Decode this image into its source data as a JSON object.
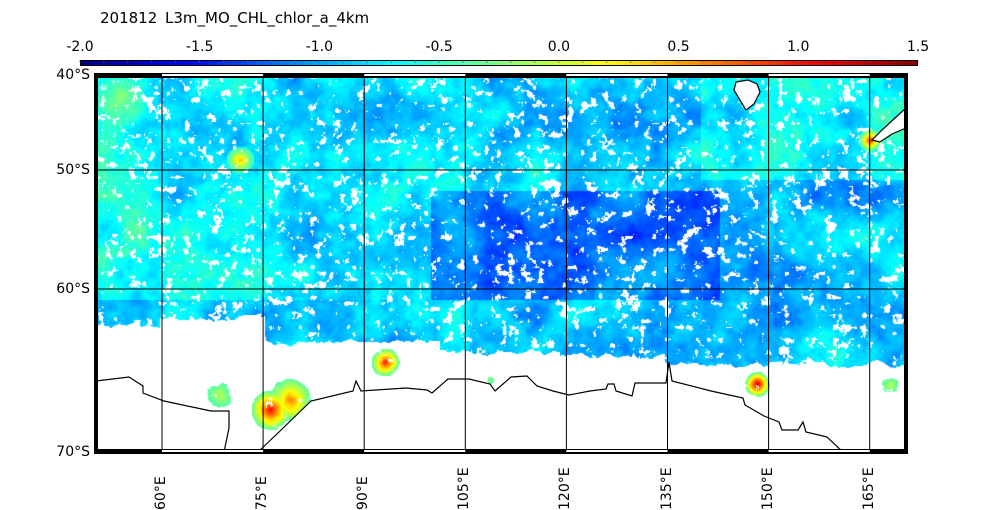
{
  "header": {
    "date": "201812",
    "product": "L3m_MO_CHL_chlor_a_4km"
  },
  "chart_data": {
    "type": "heatmap",
    "title": "201812    L3m_MO_CHL_chlor_a_4km",
    "colormap": "jet",
    "colorbar": {
      "range": [
        -2.0,
        1.5
      ],
      "ticks": [
        {
          "value": -2.0,
          "label": "-2.0"
        },
        {
          "value": -1.5,
          "label": "-1.5"
        },
        {
          "value": -1.0,
          "label": "-1.0"
        },
        {
          "value": -0.5,
          "label": "-0.5"
        },
        {
          "value": 0.0,
          "label": "0.0"
        },
        {
          "value": 0.5,
          "label": "0.5"
        },
        {
          "value": 1.0,
          "label": "1.0"
        },
        {
          "value": 1.5,
          "label": "1.5"
        }
      ]
    },
    "lat_ticks": [
      {
        "value": -40,
        "label": "40°S"
      },
      {
        "value": -50,
        "label": "50°S"
      },
      {
        "value": -60,
        "label": "60°S"
      },
      {
        "value": -70,
        "label": "70°S"
      }
    ],
    "lon_ticks": [
      {
        "value": 60,
        "label": "60°E"
      },
      {
        "value": 75,
        "label": "75°E"
      },
      {
        "value": 90,
        "label": "90°E"
      },
      {
        "value": 105,
        "label": "105°E"
      },
      {
        "value": 120,
        "label": "120°E"
      },
      {
        "value": 135,
        "label": "135°E"
      },
      {
        "value": 150,
        "label": "150°E"
      },
      {
        "value": 165,
        "label": "165°E"
      }
    ],
    "no_data_color": "#ffffff",
    "land_color": "#ffffff",
    "coastline_color": "#000000",
    "grid": true
  }
}
